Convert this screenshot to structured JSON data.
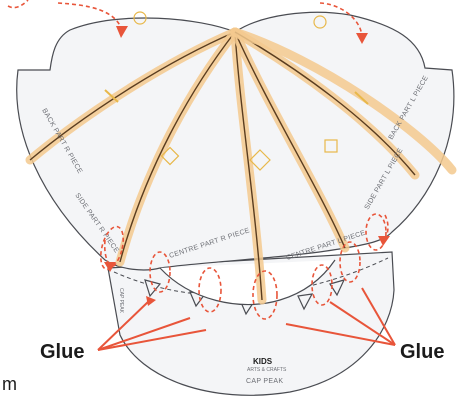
{
  "pieces": {
    "back_right_label": "BACK PART R PIECE",
    "back_left_label": "BACK PART L PIECE",
    "side_right_label": "SIDE PART R PIECE",
    "side_left_label": "SIDE PART L PIECE",
    "centre_right_label": "CENTRE PART R PIECE",
    "centre_left_label": "CENTRE PART L PIECE",
    "peak_label": "CAP PEAK",
    "peak_logo": "KIDS",
    "peak_logo_sub": "ARTS & CRAFTS",
    "peak_side_text": "CAP PEAK"
  },
  "callouts": {
    "glue_left": "Glue",
    "glue_right": "Glue"
  },
  "caption": {
    "fragment": "m"
  },
  "colors": {
    "arrow": "#e8553a",
    "seam": "#f3c98e",
    "piece_fill": "#f4f5f7",
    "outline": "#4a4c52"
  }
}
